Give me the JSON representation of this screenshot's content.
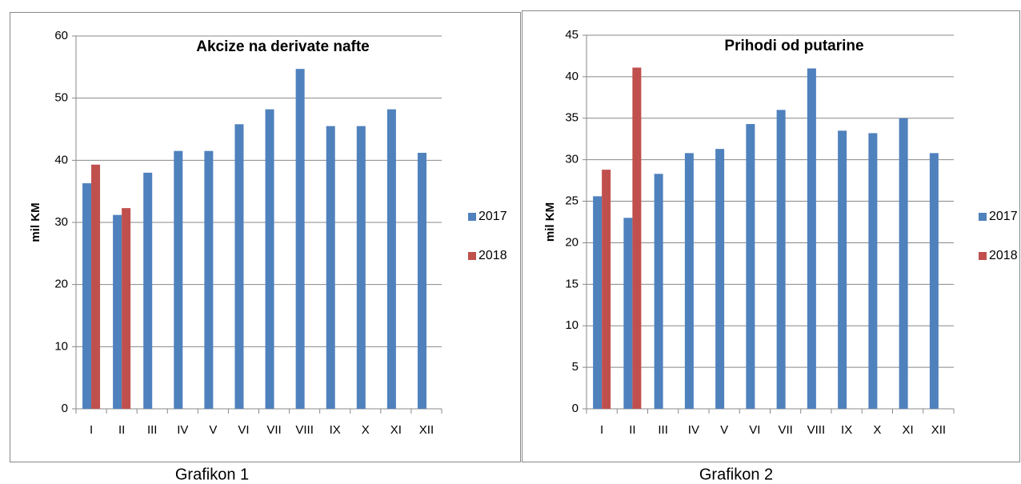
{
  "chart_data": [
    {
      "type": "bar",
      "title": "Akcize na derivate nafte",
      "ylabel": "mil KM",
      "caption": "Grafikon 1",
      "categories": [
        "I",
        "II",
        "III",
        "IV",
        "V",
        "VI",
        "VII",
        "VIII",
        "IX",
        "X",
        "XI",
        "XII"
      ],
      "series": [
        {
          "name": "2017",
          "color": "#4f81bd",
          "values": [
            36.3,
            31.2,
            38.0,
            41.5,
            41.5,
            45.8,
            48.2,
            54.7,
            45.5,
            45.5,
            48.2,
            41.2
          ]
        },
        {
          "name": "2018",
          "color": "#c0504d",
          "values": [
            39.3,
            32.3,
            null,
            null,
            null,
            null,
            null,
            null,
            null,
            null,
            null,
            null
          ]
        }
      ],
      "ylim": [
        0,
        60
      ],
      "yticks": [
        0,
        10,
        20,
        30,
        40,
        50,
        60
      ],
      "grid": true,
      "legend": "right"
    },
    {
      "type": "bar",
      "title": "Prihodi od putarine",
      "ylabel": "mil KM",
      "caption": "Grafikon 2",
      "categories": [
        "I",
        "II",
        "III",
        "IV",
        "V",
        "VI",
        "VII",
        "VIII",
        "IX",
        "X",
        "XI",
        "XII"
      ],
      "series": [
        {
          "name": "2017",
          "color": "#4f81bd",
          "values": [
            25.6,
            23.0,
            28.3,
            30.8,
            31.3,
            34.3,
            36.0,
            41.0,
            33.5,
            33.2,
            35.0,
            30.8
          ]
        },
        {
          "name": "2018",
          "color": "#c0504d",
          "values": [
            28.8,
            41.1,
            null,
            null,
            null,
            null,
            null,
            null,
            null,
            null,
            null,
            null
          ]
        }
      ],
      "ylim": [
        0,
        45
      ],
      "yticks": [
        0,
        5,
        10,
        15,
        20,
        25,
        30,
        35,
        40,
        45
      ],
      "grid": true,
      "legend": "right"
    }
  ]
}
